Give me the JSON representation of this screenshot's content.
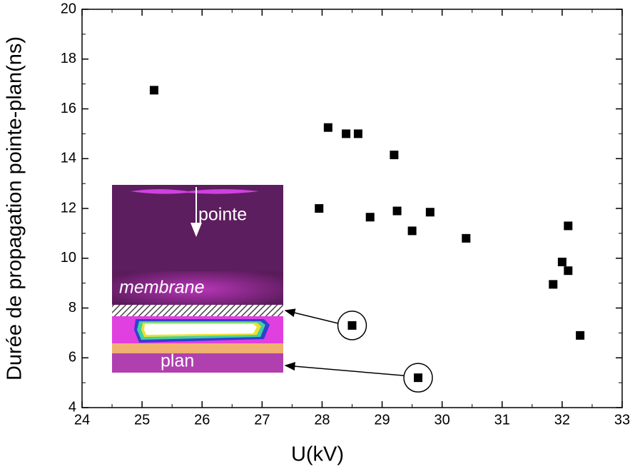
{
  "chart_data": {
    "type": "scatter",
    "xlabel": "U(kV)",
    "ylabel": "Durée de propagation pointe-plan(ns)",
    "annotations": [
      "pointe",
      "membrane",
      "plan"
    ],
    "color": "#000000",
    "x": [
      25.2,
      28.1,
      28.4,
      28.6,
      29.2,
      27.95,
      28.8,
      29.25,
      29.5,
      29.8,
      30.4,
      32.1,
      32.0,
      32.1,
      31.85,
      32.3,
      28.5,
      29.6
    ],
    "values": [
      16.75,
      15.25,
      15.0,
      15.0,
      14.15,
      12.0,
      11.65,
      11.9,
      11.1,
      11.85,
      10.8,
      11.3,
      9.85,
      9.5,
      8.95,
      6.9,
      7.3,
      5.2
    ],
    "xlim": [
      24,
      33
    ],
    "xticks": [
      24,
      25,
      26,
      27,
      28,
      29,
      30,
      31,
      32,
      33
    ],
    "ylim": [
      4,
      20
    ],
    "yticks": [
      4,
      6,
      8,
      10,
      12,
      14,
      16,
      18,
      20
    ]
  }
}
